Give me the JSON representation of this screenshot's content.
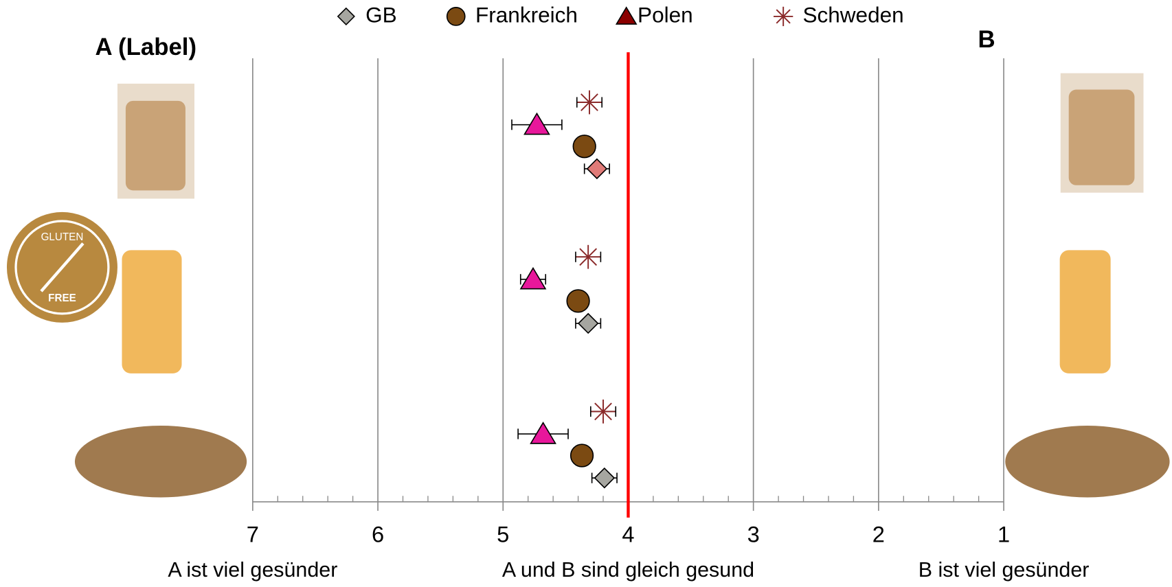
{
  "chart_data": {
    "type": "dotplot",
    "title": "A (Label)",
    "right_label": "B",
    "categories": [
      null,
      null,
      null
    ],
    "xlim": [
      7,
      1
    ],
    "xticks": [
      7,
      6,
      5,
      4,
      3,
      2,
      1
    ],
    "xminorticks": [
      6.8,
      6.6,
      6.4,
      6.2,
      5.8,
      5.6,
      5.4,
      5.2,
      4.8,
      4.6,
      4.4,
      4.2,
      3.8,
      3.6,
      3.4,
      3.2,
      2.8,
      2.6,
      2.4,
      2.2,
      1.8,
      1.6,
      1.4,
      1.2
    ],
    "grid": true,
    "reference_line": {
      "value": 4,
      "color": "#ff0000"
    },
    "x_annotations": [
      {
        "value": 7,
        "label": "A ist viel gesünder"
      },
      {
        "value": 4,
        "label": "A und B sind gleich gesund"
      },
      {
        "value": 1,
        "label": "B ist viel gesünder"
      }
    ],
    "badge": [
      "GLUTEN",
      "FREE"
    ],
    "legend": "top",
    "series": [
      {
        "name": "GB",
        "marker": "diamond",
        "color": "#a6a6a0",
        "legend_color": "#a6a6a0",
        "colors": [
          "#e07b78",
          "#a6a6a0",
          "#a6a6a0"
        ],
        "values": [
          4.25,
          4.32,
          4.19
        ],
        "errors": [
          0.1,
          0.1,
          0.1
        ]
      },
      {
        "name": "Frankreich",
        "marker": "circle",
        "color": "#7b4a12",
        "legend_color": "#7b4a12",
        "values": [
          4.35,
          4.4,
          4.37
        ],
        "errors": [
          0.05,
          0.06,
          0.07
        ]
      },
      {
        "name": "Polen",
        "marker": "triangle",
        "color": "#e8179b",
        "legend_color": "#8b0000",
        "values": [
          4.73,
          4.76,
          4.68
        ],
        "errors": [
          0.2,
          0.1,
          0.2
        ]
      },
      {
        "name": "Schweden",
        "marker": "asterisk",
        "color": "#8b2a2a",
        "legend_color": "#8b2a2a",
        "values": [
          4.31,
          4.32,
          4.2
        ],
        "errors": [
          0.1,
          0.1,
          0.1
        ]
      }
    ]
  }
}
